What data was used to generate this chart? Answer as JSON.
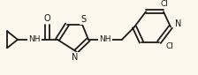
{
  "bg_color": "#fdf8ee",
  "line_color": "#1a1a1a",
  "line_width": 1.3,
  "font_size": 6.5,
  "figsize": [
    2.24,
    0.85
  ],
  "dpi": 100,
  "xlim": [
    0,
    224
  ],
  "ylim": [
    0,
    85
  ]
}
